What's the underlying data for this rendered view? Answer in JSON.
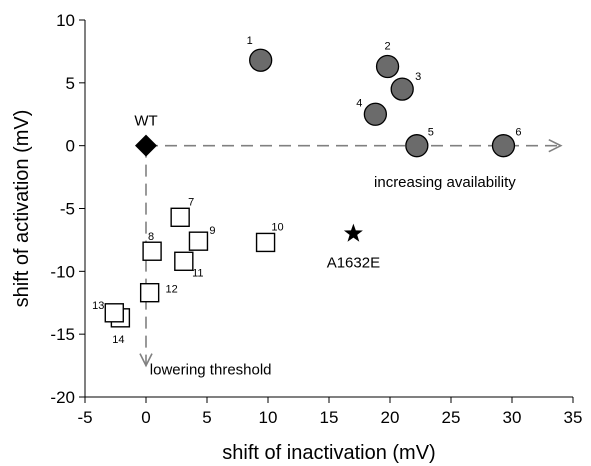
{
  "chart_data": {
    "type": "scatter",
    "xlabel": "shift of inactivation (mV)",
    "ylabel": "shift of activation (mV)",
    "xlim": [
      -5,
      35
    ],
    "ylim": [
      -20,
      10
    ],
    "xticks": [
      "-5",
      "0",
      "5",
      "10",
      "15",
      "20",
      "25",
      "30",
      "35"
    ],
    "yticks": [
      "10",
      "5",
      "0",
      "-5",
      "-10",
      "-15",
      "-20"
    ],
    "grid": false,
    "series": [
      {
        "marker": "circle",
        "fill": "#6b6b6b",
        "points": [
          {
            "label": "1",
            "x": 9.4,
            "y": 6.8
          },
          {
            "label": "2",
            "x": 19.8,
            "y": 6.3
          },
          {
            "label": "3",
            "x": 21.0,
            "y": 4.5
          },
          {
            "label": "4",
            "x": 18.8,
            "y": 2.5
          },
          {
            "label": "5",
            "x": 22.2,
            "y": 0.0
          },
          {
            "label": "6",
            "x": 29.3,
            "y": 0.0
          }
        ]
      },
      {
        "marker": "open-square",
        "fill": "#ffffff",
        "points": [
          {
            "label": "7",
            "x": 2.8,
            "y": -5.7
          },
          {
            "label": "8",
            "x": 0.5,
            "y": -8.4
          },
          {
            "label": "9",
            "x": 4.3,
            "y": -7.6
          },
          {
            "label": "10",
            "x": 9.8,
            "y": -7.7
          },
          {
            "label": "11",
            "x": 3.1,
            "y": -9.2
          },
          {
            "label": "12",
            "x": 0.3,
            "y": -11.7
          },
          {
            "label": "13",
            "x": -2.6,
            "y": -13.3
          },
          {
            "label": "14",
            "x": -2.1,
            "y": -13.7
          }
        ]
      }
    ],
    "wt": {
      "label": "WT",
      "x": 0,
      "y": 0,
      "marker": "diamond",
      "fill": "#000000"
    },
    "star": {
      "label": "A1632E",
      "x": 17.0,
      "y": -7.0,
      "marker": "star",
      "fill": "#000000"
    },
    "arrows": [
      {
        "from": [
          0,
          0
        ],
        "to": [
          34,
          0
        ],
        "label": "increasing availability",
        "style": "dashed",
        "color": "#808080"
      },
      {
        "from": [
          0,
          0
        ],
        "to": [
          0,
          -17.5
        ],
        "label": "lowering threshold",
        "style": "dashed",
        "color": "#808080"
      }
    ]
  }
}
